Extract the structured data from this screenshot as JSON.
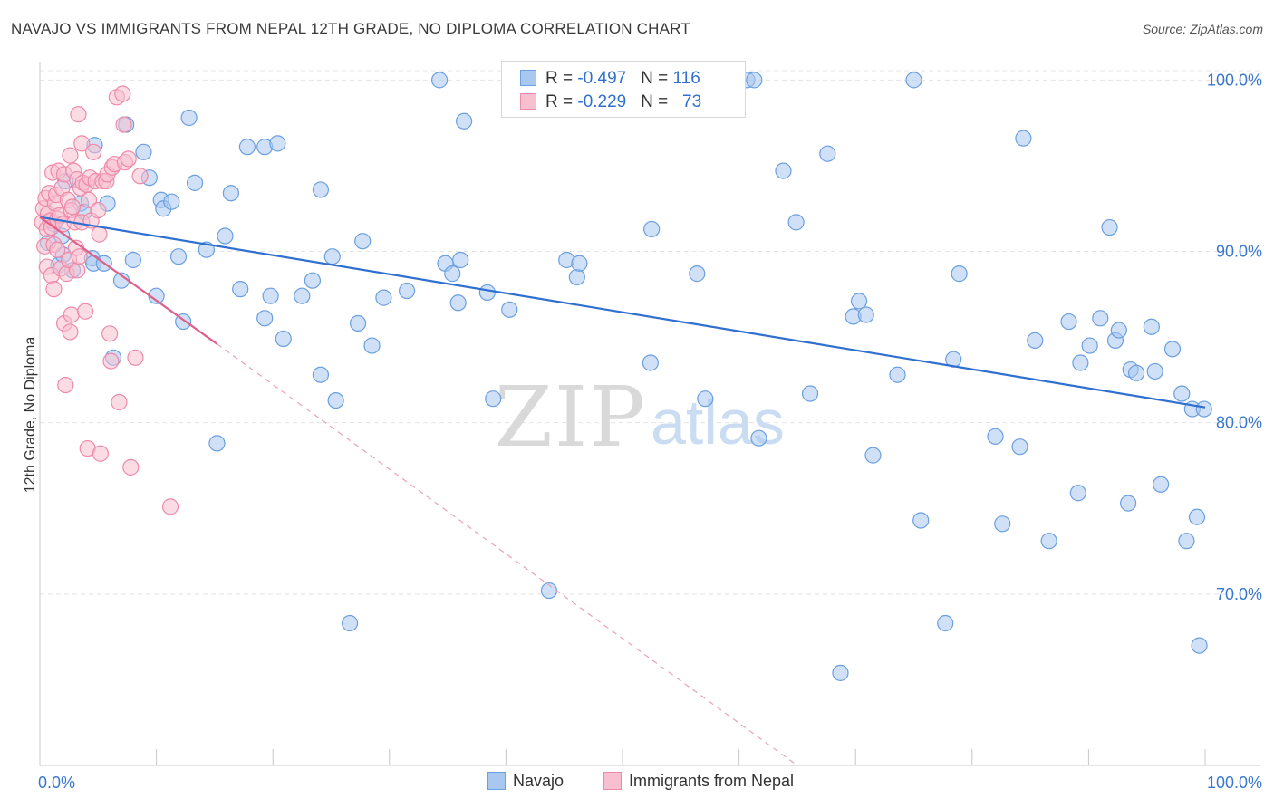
{
  "header": {
    "title": "NAVAJO VS IMMIGRANTS FROM NEPAL 12TH GRADE, NO DIPLOMA CORRELATION CHART",
    "source": "Source: ZipAtlas.com"
  },
  "watermark": {
    "zip": "ZIP",
    "atlas": "atlas"
  },
  "legend": {
    "rows": [
      {
        "r_label": "R = ",
        "r_value": "-0.497",
        "n_label": "N = ",
        "n_value": "116",
        "color": "#a9c8f0",
        "border": "#6a9fe0"
      },
      {
        "r_label": "R = ",
        "r_value": "-0.229",
        "n_label": "N = ",
        "n_value": "73",
        "color": "#f8bfd0",
        "border": "#ee8aa8"
      }
    ]
  },
  "bottom_legend": [
    {
      "label": "Navajo",
      "color": "#a9c8f0",
      "border": "#6a9fe0"
    },
    {
      "label": "Immigrants from Nepal",
      "color": "#f8bfd0",
      "border": "#ee8aa8"
    }
  ],
  "chart_data": {
    "type": "scatter",
    "title": "NAVAJO VS IMMIGRANTS FROM NEPAL 12TH GRADE, NO DIPLOMA CORRELATION CHART",
    "ylabel": "12th Grade, No Diploma",
    "xlabel": "",
    "xlim": [
      0,
      100
    ],
    "ylim": [
      60,
      101.5
    ],
    "x_tick_labels": [
      "0.0%",
      "100.0%"
    ],
    "y_ticks": [
      70,
      80,
      90,
      100
    ],
    "y_tick_labels": [
      "70.0%",
      "80.0%",
      "90.0%",
      "100.0%"
    ],
    "grid": true,
    "legend_position": "top-center",
    "series": [
      {
        "name": "Navajo",
        "color": "#a9c8f0",
        "stroke": "#6a9fe0",
        "trend": {
          "x": [
            0,
            100
          ],
          "y": [
            92.0,
            80.9
          ],
          "color": "#2f6fd0"
        },
        "points": [
          [
            0.7,
            90.5
          ],
          [
            1.2,
            91.6
          ],
          [
            1.6,
            89.2
          ],
          [
            1.9,
            90.9
          ],
          [
            2.0,
            89.8
          ],
          [
            2.2,
            94.1
          ],
          [
            2.8,
            88.9
          ],
          [
            3.5,
            92.8
          ],
          [
            3.8,
            92.3
          ],
          [
            4.5,
            89.6
          ],
          [
            4.6,
            89.3
          ],
          [
            4.7,
            96.2
          ],
          [
            5.5,
            89.3
          ],
          [
            5.8,
            92.8
          ],
          [
            6.3,
            83.8
          ],
          [
            7.0,
            88.3
          ],
          [
            7.4,
            97.4
          ],
          [
            8.0,
            89.5
          ],
          [
            8.9,
            95.8
          ],
          [
            9.4,
            94.3
          ],
          [
            10.0,
            87.4
          ],
          [
            10.4,
            93.0
          ],
          [
            10.6,
            92.5
          ],
          [
            11.3,
            92.9
          ],
          [
            11.9,
            89.7
          ],
          [
            12.3,
            85.9
          ],
          [
            12.8,
            97.8
          ],
          [
            13.3,
            94.0
          ],
          [
            14.3,
            90.1
          ],
          [
            15.2,
            78.8
          ],
          [
            15.9,
            90.9
          ],
          [
            16.4,
            93.4
          ],
          [
            17.2,
            87.8
          ],
          [
            17.8,
            96.1
          ],
          [
            19.3,
            96.1
          ],
          [
            19.3,
            86.1
          ],
          [
            19.8,
            87.4
          ],
          [
            20.4,
            96.3
          ],
          [
            20.9,
            84.9
          ],
          [
            22.5,
            87.4
          ],
          [
            23.4,
            88.3
          ],
          [
            24.1,
            82.8
          ],
          [
            24.1,
            93.6
          ],
          [
            25.1,
            89.7
          ],
          [
            25.4,
            81.3
          ],
          [
            26.6,
            68.3
          ],
          [
            27.3,
            85.8
          ],
          [
            27.7,
            90.6
          ],
          [
            28.5,
            84.5
          ],
          [
            29.5,
            87.3
          ],
          [
            31.5,
            87.7
          ],
          [
            34.3,
            100.0
          ],
          [
            34.8,
            89.3
          ],
          [
            35.4,
            88.7
          ],
          [
            35.9,
            87.0
          ],
          [
            36.1,
            89.5
          ],
          [
            36.4,
            97.6
          ],
          [
            38.4,
            87.6
          ],
          [
            38.9,
            81.4
          ],
          [
            40.3,
            86.6
          ],
          [
            43.7,
            70.2
          ],
          [
            45.2,
            89.5
          ],
          [
            46.1,
            88.5
          ],
          [
            46.3,
            89.3
          ],
          [
            52.5,
            91.3
          ],
          [
            52.4,
            83.5
          ],
          [
            52.8,
            100.0
          ],
          [
            56.4,
            88.7
          ],
          [
            57.1,
            81.4
          ],
          [
            60.7,
            100.0
          ],
          [
            61.3,
            100.0
          ],
          [
            61.7,
            79.1
          ],
          [
            63.8,
            94.7
          ],
          [
            64.9,
            91.7
          ],
          [
            66.1,
            81.7
          ],
          [
            67.6,
            95.7
          ],
          [
            68.7,
            65.4
          ],
          [
            69.8,
            86.2
          ],
          [
            70.3,
            87.1
          ],
          [
            70.9,
            86.3
          ],
          [
            71.5,
            78.1
          ],
          [
            73.6,
            82.8
          ],
          [
            75.0,
            100.0
          ],
          [
            75.6,
            74.3
          ],
          [
            77.7,
            68.3
          ],
          [
            78.4,
            83.7
          ],
          [
            78.9,
            88.7
          ],
          [
            82.0,
            79.2
          ],
          [
            82.6,
            74.1
          ],
          [
            84.1,
            78.6
          ],
          [
            84.4,
            96.6
          ],
          [
            85.4,
            84.8
          ],
          [
            86.6,
            73.1
          ],
          [
            88.3,
            85.9
          ],
          [
            89.1,
            75.9
          ],
          [
            89.3,
            83.5
          ],
          [
            90.1,
            84.5
          ],
          [
            91.0,
            86.1
          ],
          [
            91.8,
            91.4
          ],
          [
            92.3,
            84.8
          ],
          [
            92.6,
            85.4
          ],
          [
            93.4,
            75.3
          ],
          [
            93.6,
            83.1
          ],
          [
            94.1,
            82.9
          ],
          [
            95.4,
            85.6
          ],
          [
            95.7,
            83.0
          ],
          [
            96.2,
            76.4
          ],
          [
            97.2,
            84.3
          ],
          [
            98.0,
            81.7
          ],
          [
            98.4,
            73.1
          ],
          [
            98.9,
            80.8
          ],
          [
            99.3,
            74.5
          ],
          [
            99.5,
            67.0
          ],
          [
            99.9,
            80.8
          ]
        ]
      },
      {
        "name": "Immigrants from Nepal",
        "color": "#f8bfd0",
        "stroke": "#ee8aa8",
        "trend": {
          "x": [
            0,
            15.2
          ],
          "y": [
            92.0,
            84.6
          ],
          "color": "#e0608a"
        },
        "trend_extension": {
          "x": [
            15.2,
            65
          ],
          "y": [
            84.6,
            60.0
          ],
          "color": "#eaa0b8"
        },
        "points": [
          [
            0.2,
            91.7
          ],
          [
            0.3,
            92.5
          ],
          [
            0.4,
            90.3
          ],
          [
            0.5,
            93.1
          ],
          [
            0.6,
            91.3
          ],
          [
            0.6,
            89.1
          ],
          [
            0.7,
            92.2
          ],
          [
            0.8,
            93.4
          ],
          [
            0.9,
            91.8
          ],
          [
            1.0,
            91.4
          ],
          [
            1.0,
            88.6
          ],
          [
            1.1,
            94.6
          ],
          [
            1.2,
            90.4
          ],
          [
            1.2,
            87.8
          ],
          [
            1.3,
            92.8
          ],
          [
            1.4,
            93.3
          ],
          [
            1.5,
            91.9
          ],
          [
            1.5,
            90.1
          ],
          [
            1.6,
            94.7
          ],
          [
            1.7,
            92.1
          ],
          [
            1.8,
            89.0
          ],
          [
            1.9,
            93.7
          ],
          [
            2.0,
            91.6
          ],
          [
            2.1,
            94.5
          ],
          [
            2.1,
            85.8
          ],
          [
            2.2,
            82.2
          ],
          [
            2.3,
            88.7
          ],
          [
            2.4,
            93.0
          ],
          [
            2.5,
            89.5
          ],
          [
            2.6,
            95.6
          ],
          [
            2.6,
            85.3
          ],
          [
            2.7,
            92.4
          ],
          [
            2.7,
            86.3
          ],
          [
            2.8,
            92.6
          ],
          [
            2.9,
            94.7
          ],
          [
            3.0,
            91.7
          ],
          [
            3.1,
            90.2
          ],
          [
            3.2,
            94.2
          ],
          [
            3.2,
            88.9
          ],
          [
            3.3,
            98.0
          ],
          [
            3.4,
            89.7
          ],
          [
            3.5,
            93.7
          ],
          [
            3.6,
            96.3
          ],
          [
            3.6,
            91.7
          ],
          [
            3.7,
            94.0
          ],
          [
            3.9,
            86.5
          ],
          [
            4.0,
            93.9
          ],
          [
            4.1,
            78.5
          ],
          [
            4.2,
            93.0
          ],
          [
            4.3,
            94.3
          ],
          [
            4.4,
            91.8
          ],
          [
            4.6,
            95.8
          ],
          [
            4.8,
            94.1
          ],
          [
            5.0,
            92.4
          ],
          [
            5.1,
            91.0
          ],
          [
            5.2,
            78.2
          ],
          [
            5.4,
            94.1
          ],
          [
            5.7,
            94.1
          ],
          [
            5.8,
            94.5
          ],
          [
            6.0,
            85.2
          ],
          [
            6.1,
            83.6
          ],
          [
            6.2,
            94.9
          ],
          [
            6.4,
            95.1
          ],
          [
            6.6,
            99.0
          ],
          [
            6.8,
            81.2
          ],
          [
            7.1,
            99.2
          ],
          [
            7.2,
            97.4
          ],
          [
            7.3,
            95.2
          ],
          [
            7.6,
            95.4
          ],
          [
            7.8,
            77.4
          ],
          [
            8.2,
            83.8
          ],
          [
            8.6,
            94.4
          ],
          [
            11.2,
            75.1
          ]
        ]
      }
    ]
  }
}
